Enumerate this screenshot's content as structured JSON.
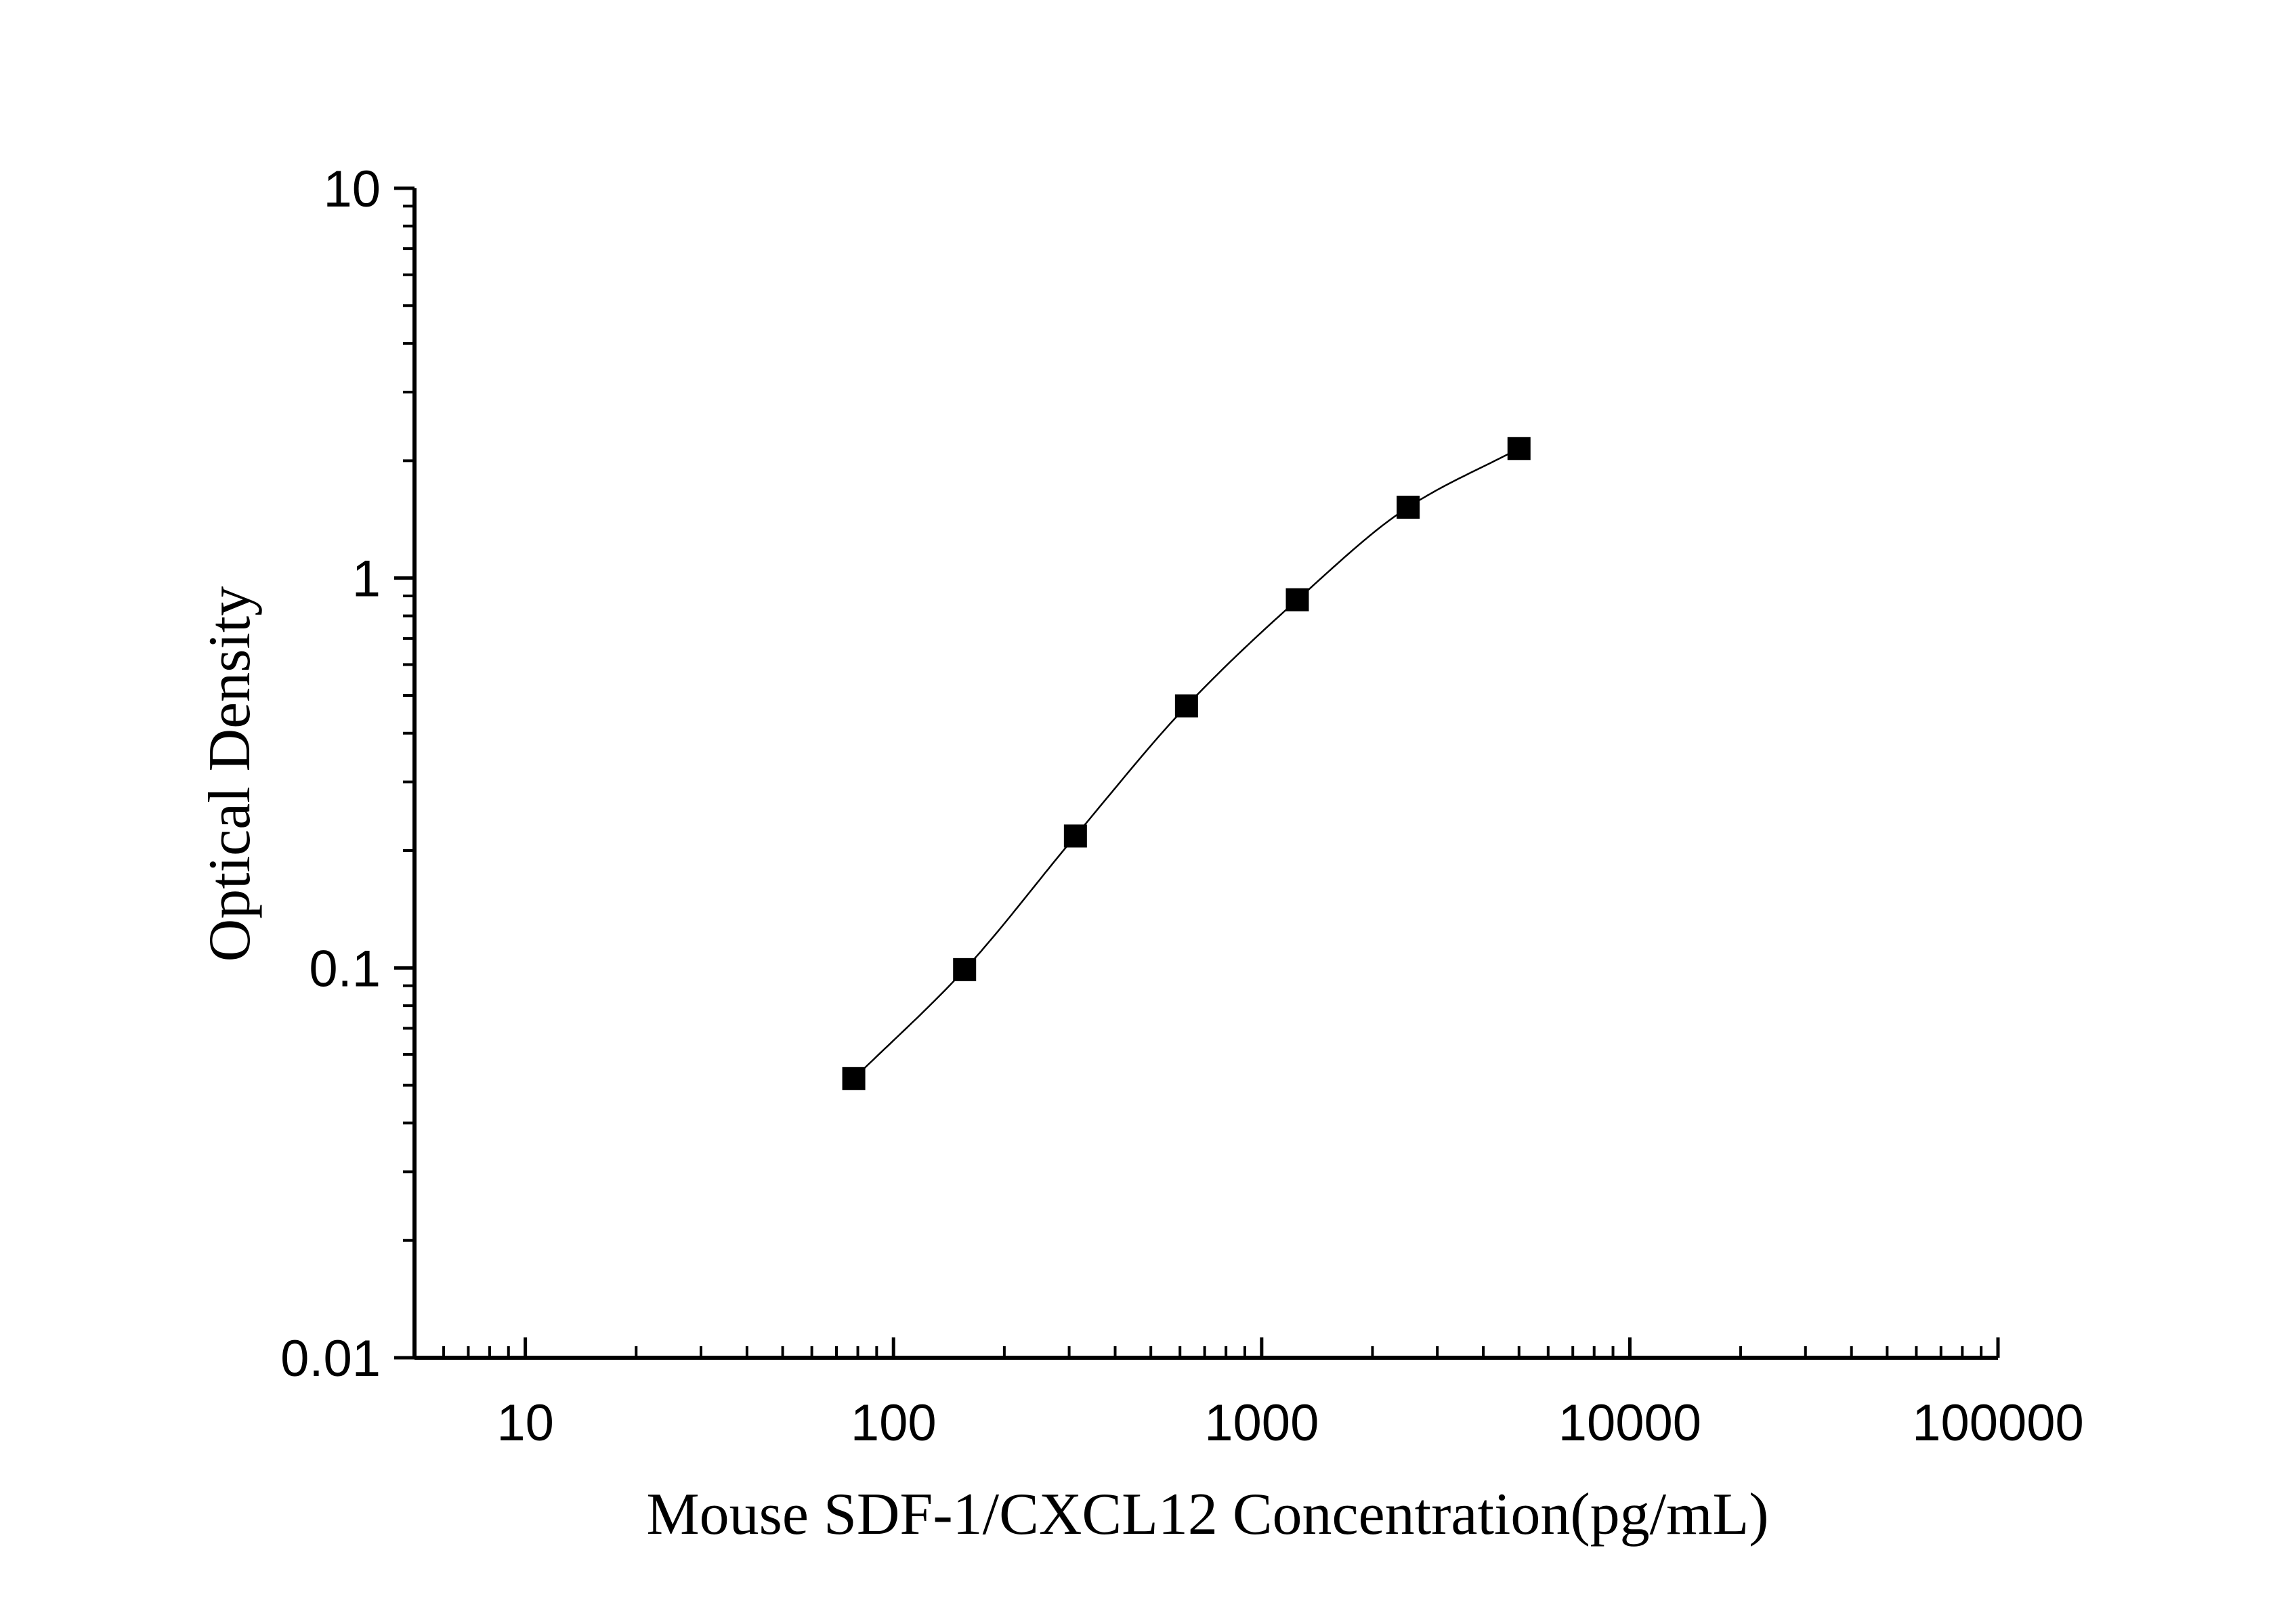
{
  "chart_data": {
    "type": "scatter",
    "xlabel": "Mouse SDF-1/CXCL12 Concentration(pg/mL)",
    "ylabel": "Optical Density",
    "xscale": "log",
    "yscale": "log",
    "xlim": [
      5,
      100000
    ],
    "ylim": [
      0.01,
      10
    ],
    "x_ticks": [
      10,
      100,
      1000,
      10000,
      100000
    ],
    "x_tick_labels": [
      "10",
      "100",
      "1000",
      "10000",
      "100000"
    ],
    "y_ticks": [
      0.01,
      0.1,
      1,
      10
    ],
    "y_tick_labels": [
      "0.01",
      "0.1",
      "1",
      "10"
    ],
    "grid": false,
    "series": [
      {
        "marker": "square",
        "color": "#000000",
        "fit_curve": true,
        "points": [
          {
            "x": 78,
            "y": 0.052
          },
          {
            "x": 156,
            "y": 0.099
          },
          {
            "x": 312,
            "y": 0.218
          },
          {
            "x": 625,
            "y": 0.47
          },
          {
            "x": 1250,
            "y": 0.88
          },
          {
            "x": 2500,
            "y": 1.52
          },
          {
            "x": 5000,
            "y": 2.15
          }
        ]
      }
    ]
  }
}
